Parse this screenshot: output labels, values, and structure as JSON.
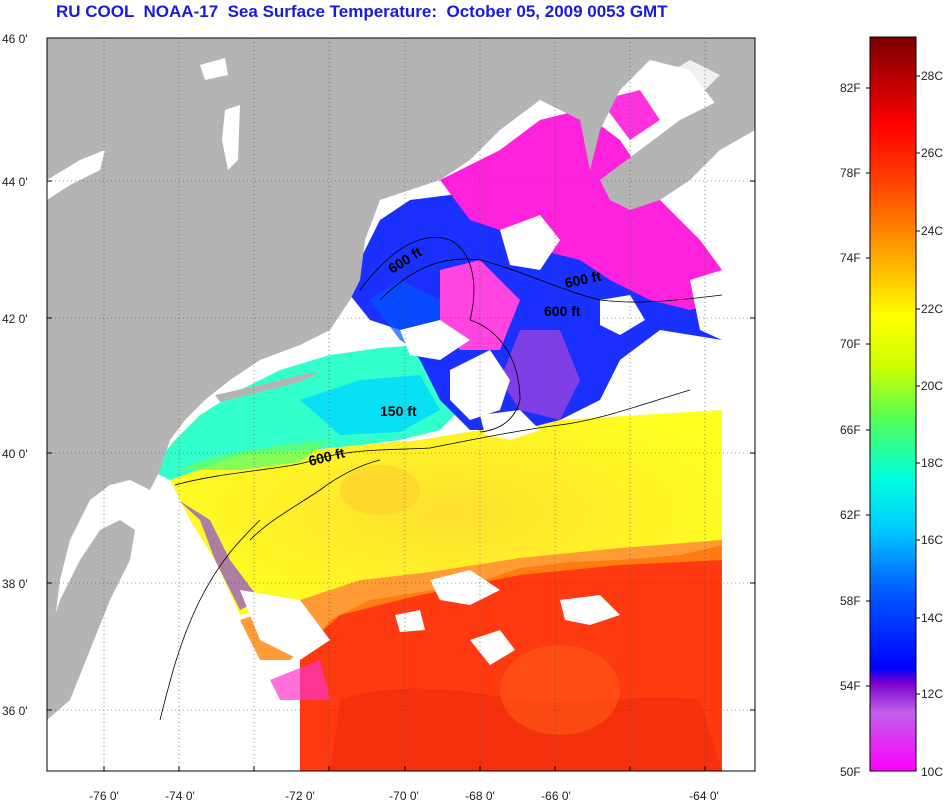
{
  "title": "RU COOL  NOAA-17  Sea Surface Temperature:  October 05, 2009 0053 GMT",
  "lat_ticks": [
    "46 0'",
    "44 0'",
    "42 0'",
    "40 0'",
    "38 0'",
    "36 0'"
  ],
  "lon_ticks": [
    "-76 0'",
    "-74 0'",
    "-72 0'",
    "-70 0'",
    "-68 0'",
    "-66 0'",
    "-64 0'"
  ],
  "contours": [
    "600 ft",
    "600 ft",
    "600 ft",
    "150 ft",
    "600 ft"
  ],
  "colorbar": {
    "fahrenheit": [
      "82F",
      "78F",
      "74F",
      "70F",
      "66F",
      "62F",
      "58F",
      "54F",
      "50F"
    ],
    "celsius": [
      "28C",
      "26C",
      "24C",
      "22C",
      "20C",
      "18C",
      "16C",
      "14C",
      "12C",
      "10C"
    ],
    "stops": [
      "#ff00ff",
      "#b45ae6",
      "#7a00cc",
      "#0000ff",
      "#00aaff",
      "#00ffff",
      "#55ff55",
      "#aaff00",
      "#ffff00",
      "#ffaa00",
      "#ff5500",
      "#ff0000",
      "#cc0000",
      "#7a0000"
    ]
  },
  "colors": {
    "land": "#b4b4b4",
    "cloud": "#ffffff",
    "title": "#1a1adc"
  }
}
